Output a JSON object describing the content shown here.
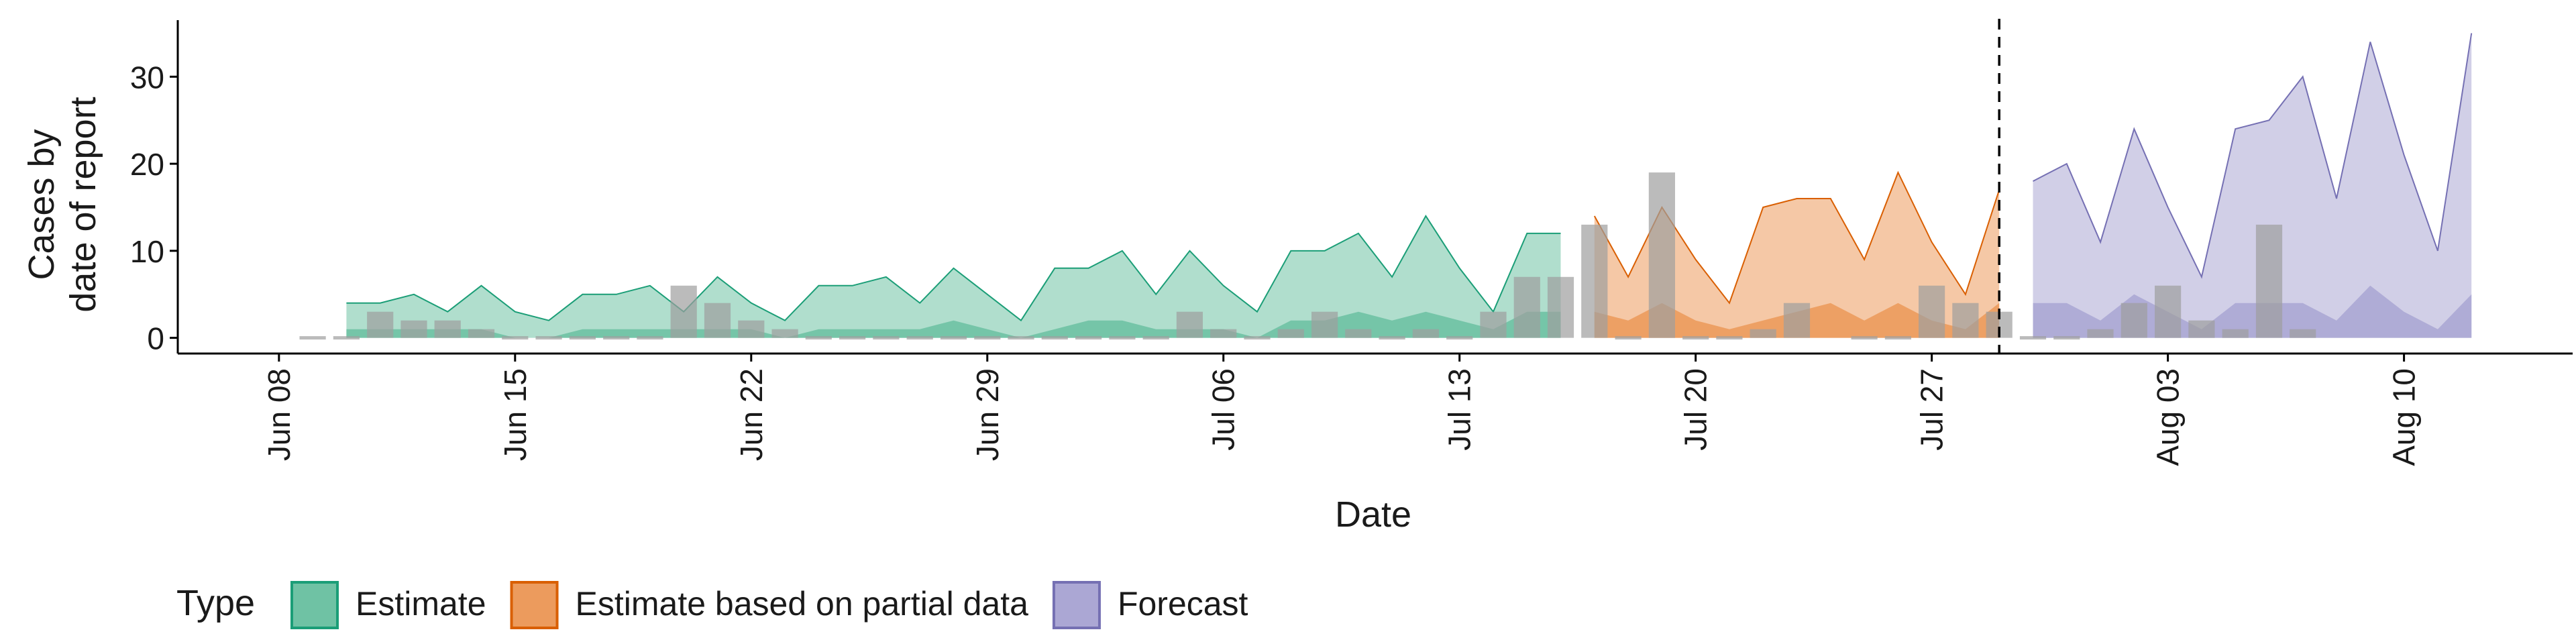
{
  "chart_data": {
    "type": "area",
    "xlabel": "Date",
    "ylabel_lines": [
      "Cases by",
      "date of report"
    ],
    "y_ticks": [
      0,
      10,
      20,
      30
    ],
    "ylim": [
      -1.8,
      36.5
    ],
    "x_range": [
      "2021-06-05",
      "2021-08-15"
    ],
    "x_ticks": [
      {
        "date": "2021-06-08",
        "label": "Jun 08"
      },
      {
        "date": "2021-06-15",
        "label": "Jun 15"
      },
      {
        "date": "2021-06-22",
        "label": "Jun 22"
      },
      {
        "date": "2021-06-29",
        "label": "Jun 29"
      },
      {
        "date": "2021-07-06",
        "label": "Jul 06"
      },
      {
        "date": "2021-07-13",
        "label": "Jul 13"
      },
      {
        "date": "2021-07-20",
        "label": "Jul 20"
      },
      {
        "date": "2021-07-27",
        "label": "Jul 27"
      },
      {
        "date": "2021-08-03",
        "label": "Aug 03"
      },
      {
        "date": "2021-08-10",
        "label": "Aug 10"
      }
    ],
    "forecast_date": "2021-07-29",
    "legend": {
      "title": "Type",
      "position": "bottom",
      "items": [
        {
          "label": "Estimate",
          "fill": "#6fc2a4",
          "stroke": "#1b9e77"
        },
        {
          "label": "Estimate based on partial data",
          "fill": "#ec9b5d",
          "stroke": "#d95f02"
        },
        {
          "label": "Forecast",
          "fill": "#aba7d4",
          "stroke": "#7570b3"
        }
      ]
    },
    "colors": {
      "estimate": "#1b9e77",
      "partial": "#d95f02",
      "forecast": "#7570b3",
      "observed": "#9e9e9e"
    },
    "series": [
      {
        "type": "Estimate",
        "start_date": "2021-06-10",
        "upper": [
          4,
          4,
          5,
          3,
          6,
          3,
          2,
          5,
          5,
          6,
          3,
          7,
          4,
          2,
          6,
          6,
          7,
          4,
          8,
          5,
          2,
          8,
          8,
          10,
          5,
          10,
          6,
          3,
          10,
          10,
          12,
          7,
          14,
          8,
          3,
          12,
          12
        ],
        "lower": [
          1,
          1,
          1,
          1,
          1,
          0,
          0,
          1,
          1,
          1,
          1,
          1,
          1,
          0,
          1,
          1,
          1,
          1,
          2,
          1,
          0,
          1,
          2,
          2,
          1,
          1,
          1,
          0,
          2,
          2,
          3,
          2,
          3,
          2,
          1,
          3,
          3
        ]
      },
      {
        "type": "Estimate based on partial data",
        "start_date": "2021-07-17",
        "upper": [
          14,
          7,
          15,
          9,
          4,
          15,
          16,
          16,
          9,
          19,
          11,
          5,
          17
        ],
        "lower": [
          3,
          2,
          4,
          2,
          1,
          2,
          3,
          4,
          2,
          4,
          2,
          1,
          4
        ]
      },
      {
        "type": "Forecast",
        "start_date": "2021-07-30",
        "upper": [
          18,
          20,
          11,
          24,
          15,
          7,
          24,
          25,
          30,
          16,
          34,
          21,
          10,
          35
        ],
        "lower": [
          4,
          4,
          2,
          5,
          3,
          1,
          4,
          4,
          4,
          2,
          6,
          3,
          1,
          5
        ]
      }
    ],
    "observed": {
      "name": "Cases by date of report",
      "start_date": "2021-06-09",
      "values": [
        0,
        0,
        3,
        2,
        2,
        1,
        0,
        0,
        0,
        0,
        0,
        6,
        4,
        2,
        1,
        0,
        0,
        0,
        0,
        0,
        0,
        0,
        0,
        0,
        0,
        0,
        3,
        1,
        0,
        1,
        3,
        1,
        0,
        1,
        0,
        3,
        7,
        7,
        13,
        0,
        19,
        0,
        0,
        1,
        4,
        null,
        0,
        0,
        6,
        4,
        3,
        0,
        0,
        1,
        4,
        6,
        2,
        1,
        13,
        1
      ]
    }
  }
}
